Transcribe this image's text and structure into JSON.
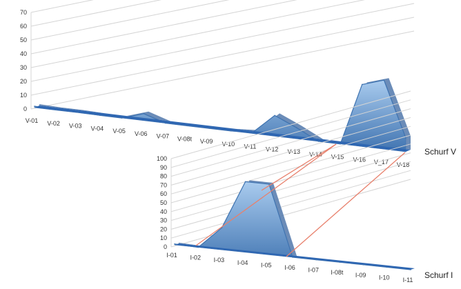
{
  "colors": {
    "area_light": "#a9cbee",
    "area_dark": "#3f73b0",
    "area_side": "#5b7fb0",
    "baseline": "#2f67b2",
    "grid": "#d4d4d4",
    "connector": "#e8806c"
  },
  "chart_data": [
    {
      "type": "area",
      "style": "3d",
      "series_label": "Schurf V",
      "grid": true,
      "ylim": [
        0,
        70
      ],
      "y_ticks": [
        "0",
        "10",
        "20",
        "30",
        "40",
        "50",
        "60",
        "70"
      ],
      "categories": [
        "V-01",
        "V-02",
        "V-03",
        "V-04",
        "V-05",
        "V-06",
        "V-07",
        "V-08t",
        "V-09",
        "V-10",
        "V-11",
        "V-12",
        "V-13",
        "V-14",
        "V-15",
        "V-16",
        "V_17",
        "V-18"
      ],
      "values": [
        1,
        0.5,
        0.5,
        0,
        0,
        5,
        0,
        0,
        0,
        0,
        1,
        15,
        8,
        0,
        0,
        45,
        50,
        10
      ]
    },
    {
      "type": "area",
      "style": "3d",
      "series_label": "Schurf I",
      "grid": true,
      "ylim": [
        0,
        100
      ],
      "y_ticks": [
        "0",
        "10",
        "20",
        "30",
        "40",
        "50",
        "60",
        "70",
        "80",
        "90",
        "100"
      ],
      "categories": [
        "I-01",
        "I-02",
        "I-03",
        "I-04",
        "I-05",
        "I-06",
        "I-07",
        "I-08t",
        "I-09",
        "I-10",
        "I-11"
      ],
      "values": [
        1,
        0,
        25,
        80,
        80,
        0,
        0,
        0,
        0,
        0,
        0
      ]
    }
  ]
}
